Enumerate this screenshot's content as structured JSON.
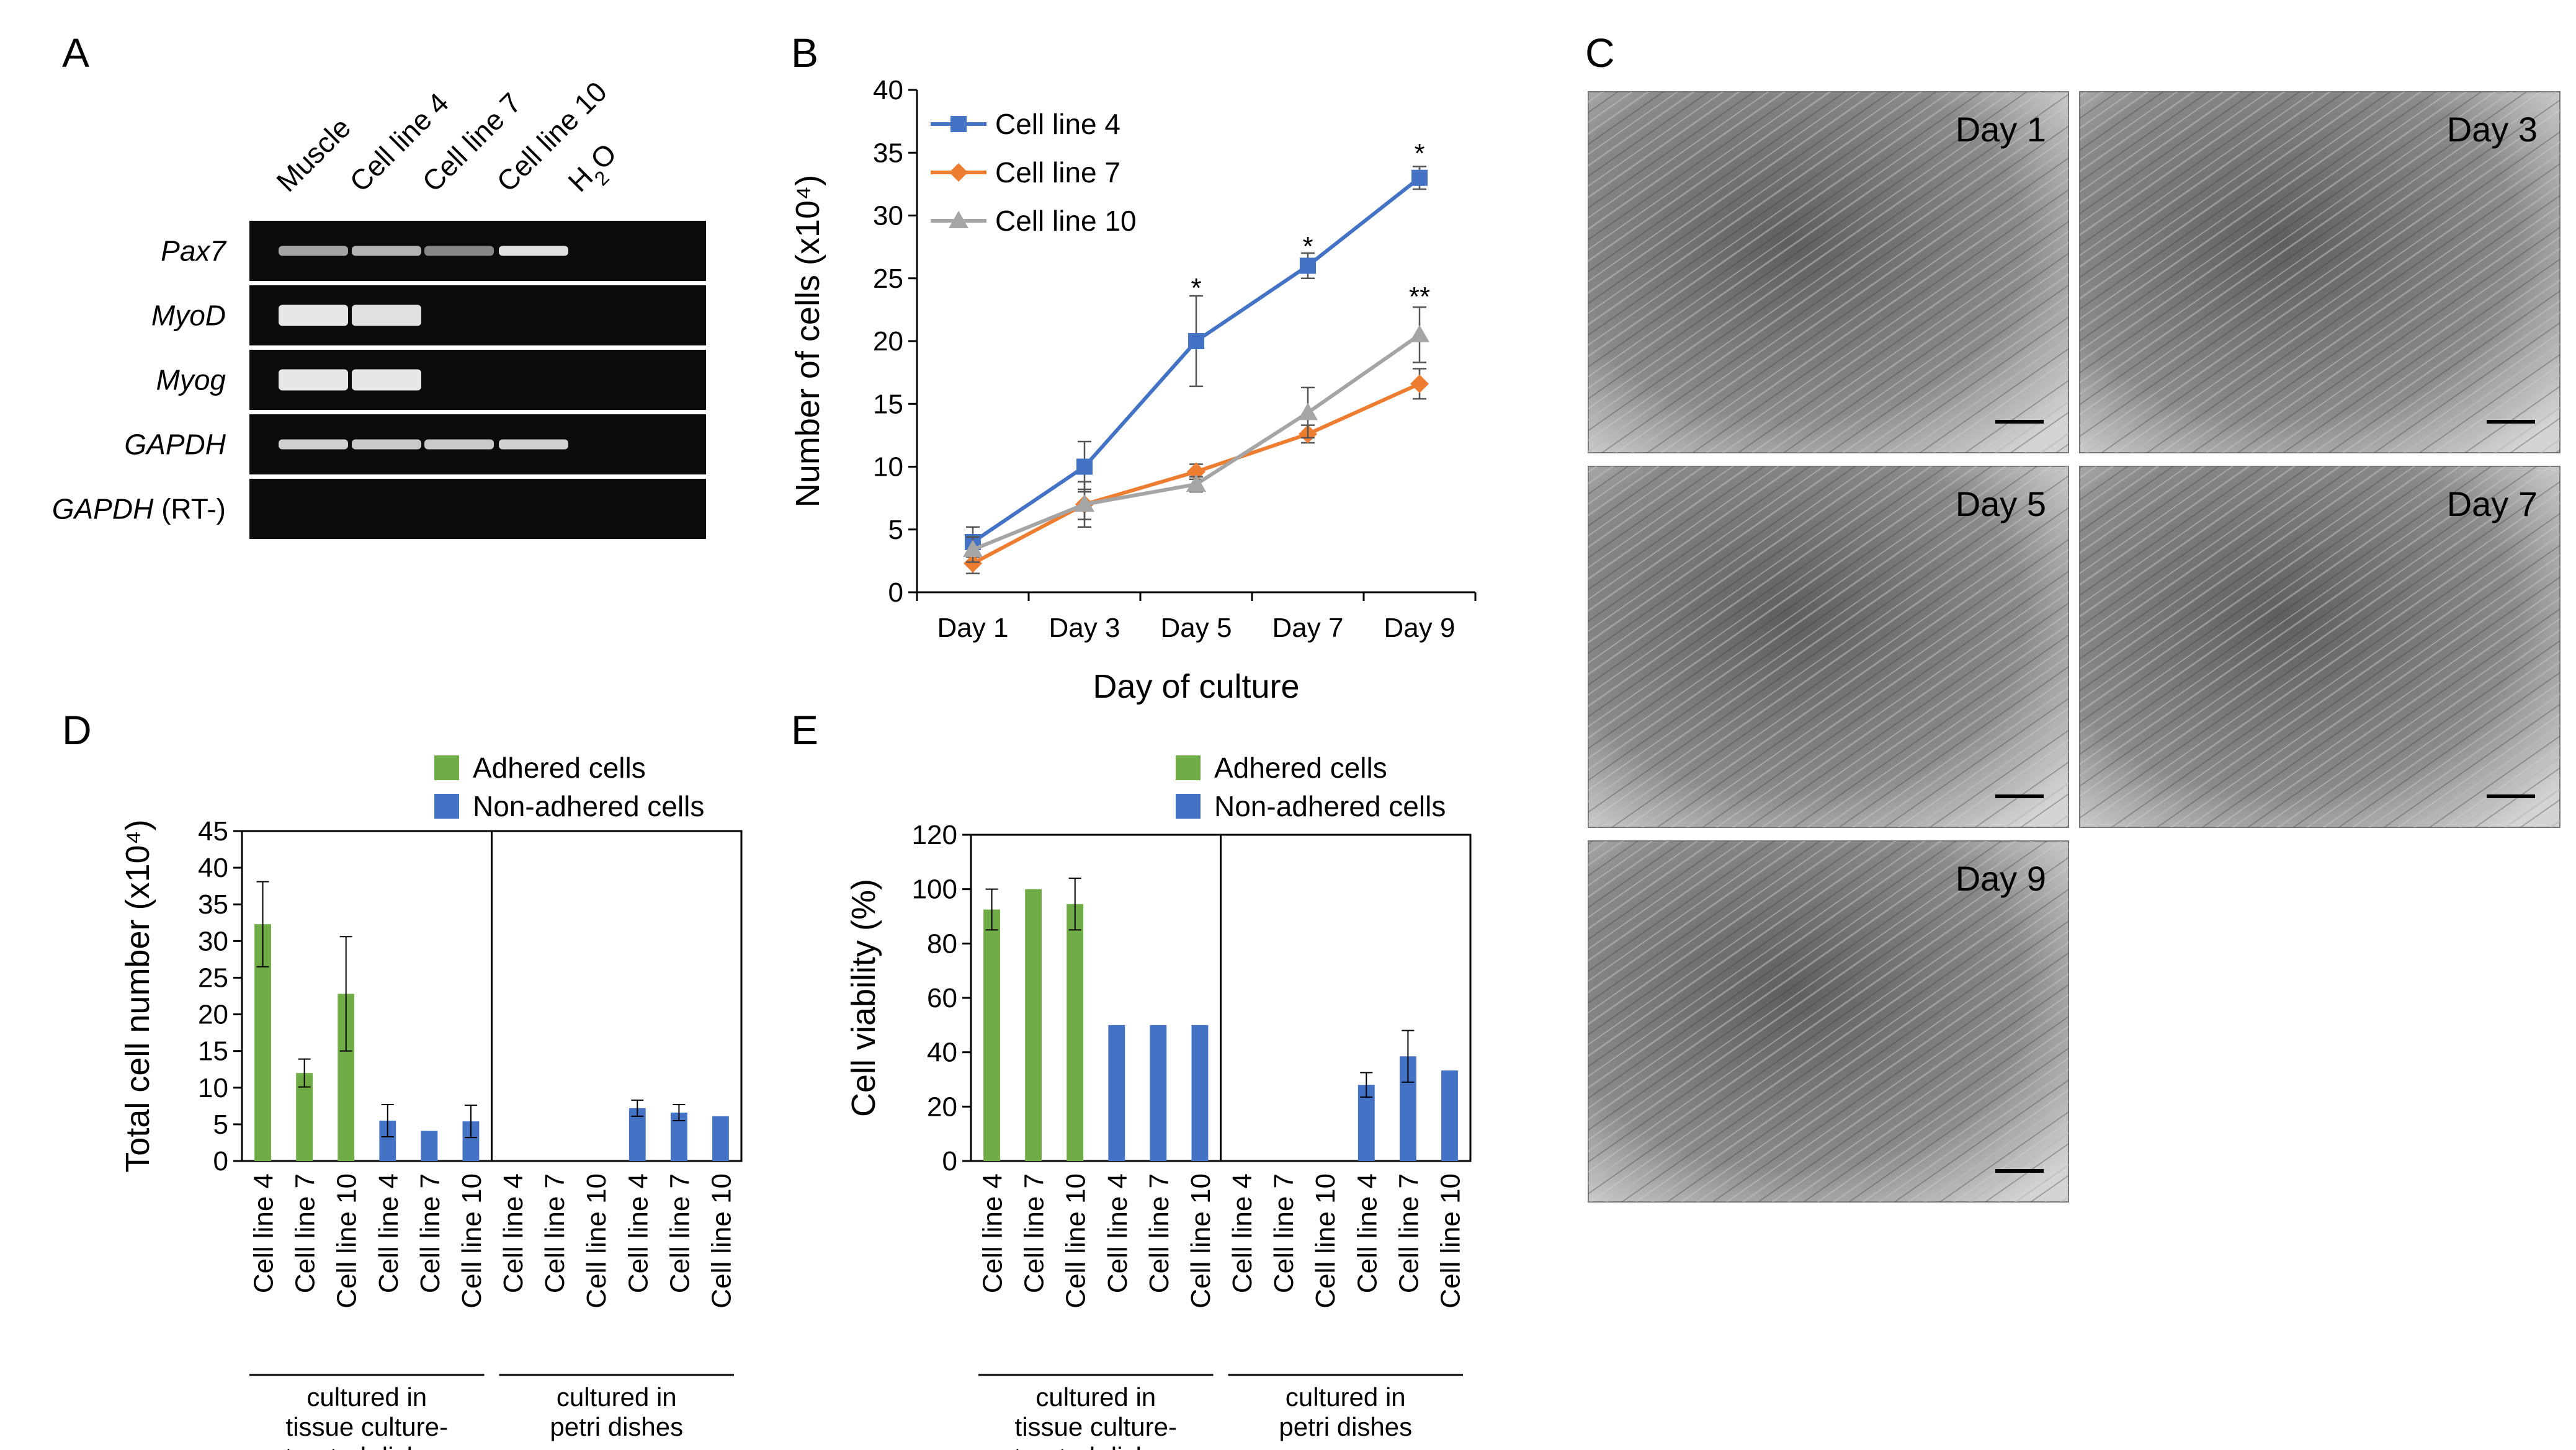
{
  "panel_a": {
    "label": "A",
    "columns": [
      "Muscle",
      "Cell line 4",
      "Cell line 7",
      "Cell line 10",
      "H2O"
    ],
    "rows": [
      {
        "gene": "Pax7",
        "suffix": "",
        "bands": [
          0.55,
          0.65,
          0.35,
          0.95,
          0
        ]
      },
      {
        "gene": "MyoD",
        "suffix": "",
        "bands": [
          1.0,
          0.95,
          0,
          0,
          0
        ]
      },
      {
        "gene": "Myog",
        "suffix": "",
        "bands": [
          1.0,
          1.0,
          0,
          0,
          0
        ]
      },
      {
        "gene": "GAPDH",
        "suffix": "",
        "bands": [
          0.85,
          0.8,
          0.8,
          0.85,
          0
        ]
      },
      {
        "gene": "GAPDH",
        "suffix": " (RT-)",
        "bands": [
          0,
          0,
          0,
          0,
          0
        ]
      }
    ]
  },
  "panel_c": {
    "label": "C",
    "images": [
      "Day 1",
      "Day 3",
      "Day 5",
      "Day 7",
      "Day 9"
    ]
  },
  "chart_data": [
    {
      "panel": "B",
      "type": "line",
      "categories": [
        "Day 1",
        "Day 3",
        "Day 5",
        "Day 7",
        "Day 9"
      ],
      "xlabel": "Day of culture",
      "ylabel": "Number of cells (x10⁴)",
      "ylim": [
        0,
        40
      ],
      "yticks": [
        0,
        5,
        10,
        15,
        20,
        25,
        30,
        35,
        40
      ],
      "legend": "top-left",
      "series": [
        {
          "name": "Cell line 4",
          "color": "#4472C4",
          "marker": "square",
          "values": [
            4,
            10,
            20,
            26,
            33
          ],
          "errors": [
            1.2,
            2.0,
            3.6,
            1.0,
            0.9
          ]
        },
        {
          "name": "Cell line 7",
          "color": "#ED7D31",
          "marker": "diamond",
          "values": [
            2.3,
            7,
            9.6,
            12.6,
            16.6
          ],
          "errors": [
            0.8,
            1.8,
            0.6,
            0.7,
            1.2
          ]
        },
        {
          "name": "Cell line 10",
          "color": "#A5A5A5",
          "marker": "triangle",
          "values": [
            3.4,
            7,
            8.6,
            14.3,
            20.5
          ],
          "errors": [
            1.0,
            1.2,
            0.6,
            2.0,
            2.2
          ]
        }
      ],
      "annotations": [
        {
          "text": "*",
          "x": "Day 5",
          "y": 24.5
        },
        {
          "text": "*",
          "x": "Day 7",
          "y": 27.8
        },
        {
          "text": "*",
          "x": "Day 9",
          "y": 35.2
        },
        {
          "text": "**",
          "x": "Day 9",
          "y": 23.8
        }
      ]
    },
    {
      "panel": "D",
      "type": "bar",
      "categories": [
        "Cell line 4",
        "Cell line 7",
        "Cell line 10",
        "Cell line 4",
        "Cell line 7",
        "Cell line 10",
        "Cell line 4",
        "Cell line 7",
        "Cell line 10",
        "Cell line 4",
        "Cell line 7",
        "Cell line 10"
      ],
      "groups": [
        "cultured in tissue culture-treated dishes",
        "cultured in petri dishes"
      ],
      "ylabel": "Total cell number (x10⁴)",
      "ylim": [
        0,
        45
      ],
      "yticks": [
        0,
        5,
        10,
        15,
        20,
        25,
        30,
        35,
        40,
        45
      ],
      "legend": "top",
      "series": [
        {
          "name": "Adhered cells",
          "color": "#70AD47",
          "values": [
            32.3,
            12,
            22.8,
            null,
            null,
            null,
            0,
            0,
            0,
            null,
            null,
            null
          ],
          "errors": [
            5.8,
            1.9,
            7.8,
            0,
            0,
            0,
            0,
            0,
            0,
            0,
            0,
            0
          ]
        },
        {
          "name": "Non-adhered cells",
          "color": "#4472C4",
          "values": [
            null,
            null,
            null,
            5.5,
            4.1,
            5.4,
            null,
            null,
            null,
            7.2,
            6.6,
            6.1
          ],
          "errors": [
            0,
            0,
            0,
            2.2,
            0,
            2.2,
            0,
            0,
            0,
            1.1,
            1.1,
            0
          ]
        }
      ]
    },
    {
      "panel": "E",
      "type": "bar",
      "categories": [
        "Cell line 4",
        "Cell line 7",
        "Cell line 10",
        "Cell line 4",
        "Cell line 7",
        "Cell line 10",
        "Cell line 4",
        "Cell line 7",
        "Cell line 10",
        "Cell line 4",
        "Cell line 7",
        "Cell line 10"
      ],
      "groups": [
        "cultured in tissue culture-treated dishes",
        "cultured in petri dishes"
      ],
      "ylabel": "Cell viability (%)",
      "ylim": [
        0,
        120
      ],
      "yticks": [
        0,
        20,
        40,
        60,
        80,
        100,
        120
      ],
      "legend": "top",
      "series": [
        {
          "name": "Adhered cells",
          "color": "#70AD47",
          "values": [
            92.5,
            100,
            94.5,
            null,
            null,
            null,
            0,
            0,
            0,
            null,
            null,
            null
          ],
          "errors": [
            7.5,
            0,
            9.5,
            0,
            0,
            0,
            0,
            0,
            0,
            0,
            0,
            0
          ]
        },
        {
          "name": "Non-adhered cells",
          "color": "#4472C4",
          "values": [
            null,
            null,
            null,
            50,
            50,
            50,
            null,
            null,
            null,
            28,
            38.5,
            33.3
          ],
          "errors": [
            0,
            0,
            0,
            0,
            0,
            0,
            0,
            0,
            0,
            4.5,
            9.5,
            0
          ]
        }
      ]
    }
  ]
}
